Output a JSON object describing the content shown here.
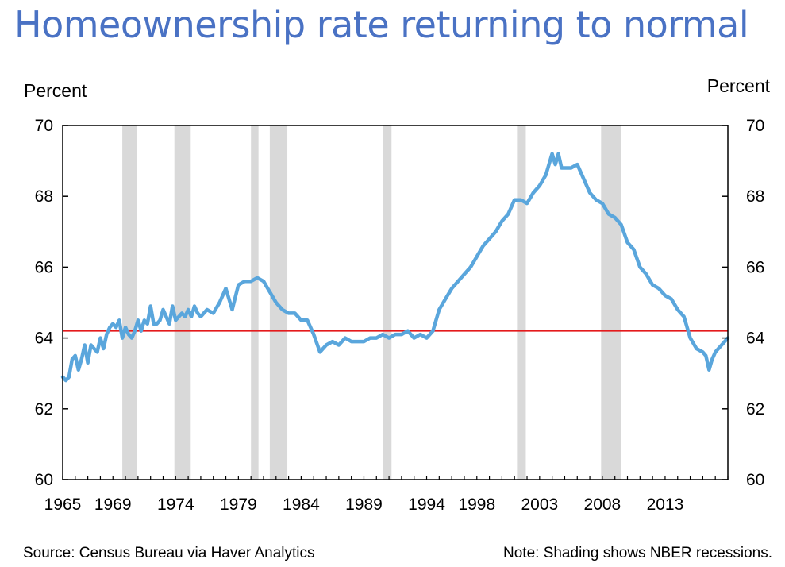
{
  "chart_data": {
    "type": "line",
    "title": "Homeownership rate returning to normal",
    "ylabel_left": "Percent",
    "ylabel_right": "Percent",
    "ylim": [
      60,
      70
    ],
    "yticks": [
      "60",
      "62",
      "64",
      "66",
      "68",
      "70"
    ],
    "yticks_right": [
      "60",
      "62",
      "64",
      "66",
      "68",
      "70"
    ],
    "xlim": [
      1965.0,
      2018.0
    ],
    "xtick_labels": [
      "1965",
      "1969",
      "1974",
      "1979",
      "1984",
      "1989",
      "1994",
      "1998",
      "2003",
      "2008",
      "2013"
    ],
    "reference_line": {
      "value": 64.2,
      "color": "#e41a1c"
    },
    "recessions": [
      [
        1969.75,
        1970.9
      ],
      [
        1973.9,
        1975.2
      ],
      [
        1980.0,
        1980.6
      ],
      [
        1981.5,
        1982.9
      ],
      [
        1990.5,
        1991.2
      ],
      [
        2001.2,
        2001.9
      ],
      [
        2007.9,
        2009.5
      ]
    ],
    "series": [
      {
        "name": "Homeownership rate",
        "color": "#5aa6dc",
        "x": [
          1965.0,
          1965.25,
          1965.5,
          1965.75,
          1966.0,
          1966.25,
          1966.5,
          1966.75,
          1967.0,
          1967.25,
          1967.5,
          1967.75,
          1968.0,
          1968.25,
          1968.5,
          1968.75,
          1969.0,
          1969.25,
          1969.5,
          1969.75,
          1970.0,
          1970.25,
          1970.5,
          1970.75,
          1971.0,
          1971.25,
          1971.5,
          1971.75,
          1972.0,
          1972.25,
          1972.5,
          1972.75,
          1973.0,
          1973.25,
          1973.5,
          1973.75,
          1974.0,
          1974.25,
          1974.5,
          1974.75,
          1975.0,
          1975.25,
          1975.5,
          1975.75,
          1976.0,
          1976.5,
          1977.0,
          1977.5,
          1978.0,
          1978.5,
          1979.0,
          1979.5,
          1980.0,
          1980.5,
          1981.0,
          1981.5,
          1982.0,
          1982.5,
          1983.0,
          1983.5,
          1984.0,
          1984.5,
          1985.0,
          1985.5,
          1986.0,
          1986.5,
          1987.0,
          1987.5,
          1988.0,
          1988.5,
          1989.0,
          1989.5,
          1990.0,
          1990.5,
          1991.0,
          1991.5,
          1992.0,
          1992.5,
          1993.0,
          1993.5,
          1994.0,
          1994.5,
          1995.0,
          1995.5,
          1996.0,
          1996.5,
          1997.0,
          1997.5,
          1998.0,
          1998.5,
          1999.0,
          1999.5,
          2000.0,
          2000.5,
          2001.0,
          2001.5,
          2002.0,
          2002.5,
          2003.0,
          2003.5,
          2004.0,
          2004.25,
          2004.5,
          2004.75,
          2005.0,
          2005.5,
          2006.0,
          2006.5,
          2007.0,
          2007.5,
          2008.0,
          2008.5,
          2009.0,
          2009.5,
          2010.0,
          2010.5,
          2011.0,
          2011.5,
          2012.0,
          2012.5,
          2013.0,
          2013.5,
          2014.0,
          2014.5,
          2015.0,
          2015.5,
          2016.0,
          2016.25,
          2016.5,
          2016.75,
          2017.0,
          2017.5,
          2018.0
        ],
        "values": [
          62.9,
          62.8,
          62.9,
          63.4,
          63.5,
          63.1,
          63.4,
          63.8,
          63.3,
          63.8,
          63.7,
          63.6,
          64.0,
          63.7,
          64.1,
          64.3,
          64.4,
          64.3,
          64.5,
          64.0,
          64.3,
          64.1,
          64.0,
          64.2,
          64.5,
          64.2,
          64.5,
          64.4,
          64.9,
          64.4,
          64.4,
          64.5,
          64.8,
          64.6,
          64.4,
          64.9,
          64.5,
          64.6,
          64.7,
          64.6,
          64.8,
          64.6,
          64.9,
          64.7,
          64.6,
          64.8,
          64.7,
          65.0,
          65.4,
          64.8,
          65.5,
          65.6,
          65.6,
          65.7,
          65.6,
          65.3,
          65.0,
          64.8,
          64.7,
          64.7,
          64.5,
          64.5,
          64.1,
          63.6,
          63.8,
          63.9,
          63.8,
          64.0,
          63.9,
          63.9,
          63.9,
          64.0,
          64.0,
          64.1,
          64.0,
          64.1,
          64.1,
          64.2,
          64.0,
          64.1,
          64.0,
          64.2,
          64.8,
          65.1,
          65.4,
          65.6,
          65.8,
          66.0,
          66.3,
          66.6,
          66.8,
          67.0,
          67.3,
          67.5,
          67.9,
          67.9,
          67.8,
          68.1,
          68.3,
          68.6,
          69.2,
          68.9,
          69.2,
          68.8,
          68.8,
          68.8,
          68.9,
          68.5,
          68.1,
          67.9,
          67.8,
          67.5,
          67.4,
          67.2,
          66.7,
          66.5,
          66.0,
          65.8,
          65.5,
          65.4,
          65.2,
          65.1,
          64.8,
          64.6,
          64.0,
          63.7,
          63.6,
          63.5,
          63.1,
          63.4,
          63.6,
          63.8,
          64.0
        ]
      }
    ]
  },
  "footer": {
    "source": "Source: Census Bureau via Haver Analytics",
    "note": "Note: Shading shows NBER recessions."
  }
}
